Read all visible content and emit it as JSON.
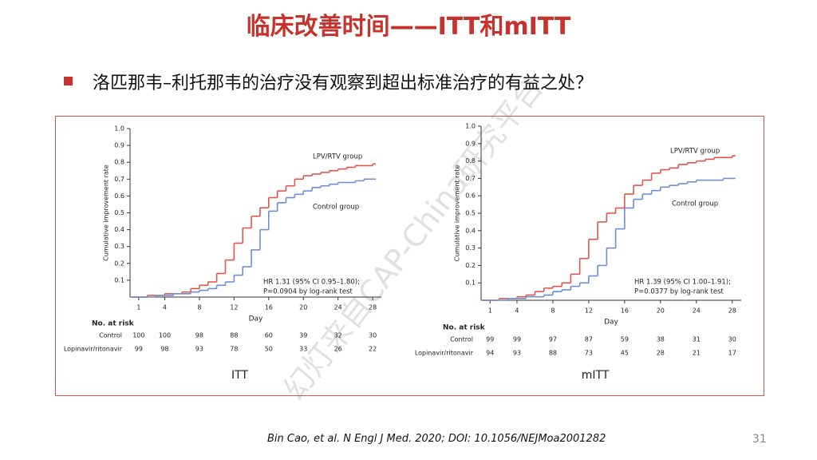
{
  "title": "临床改善时间——ITT和mITT",
  "bullet": "洛匹那韦–利托那韦的治疗没有观察到超出标准治疗的有益之处？",
  "citation": "Bin Cao, et al. N Engl J Med. 2020; DOI: 10.1056/NEJMoa2001282",
  "page_number": "31",
  "watermark": "幻灯来自CAP-China研究平台",
  "chart_data": [
    {
      "type": "step",
      "title": "ITT",
      "x_label": "Day",
      "y_label": "Cumulative improvement rate",
      "xlim": [
        0,
        29
      ],
      "xticks": [
        1,
        4,
        8,
        12,
        16,
        20,
        24,
        28
      ],
      "ylim": [
        0,
        1
      ],
      "yticks": [
        0.1,
        0.2,
        0.3,
        0.4,
        0.5,
        0.6,
        0.7,
        0.8,
        0.9,
        {
          "value": 1,
          "label": "1.0"
        }
      ],
      "x": [
        0,
        1,
        2,
        3,
        4,
        5,
        6,
        7,
        8,
        9,
        10,
        11,
        12,
        13,
        14,
        15,
        16,
        17,
        18,
        19,
        20,
        21,
        22,
        23,
        24,
        25,
        26,
        27,
        28
      ],
      "series": [
        {
          "name": "LPV/RTV group",
          "color": "#e2554a",
          "values": [
            0,
            0,
            0.01,
            0.01,
            0.02,
            0.02,
            0.03,
            0.05,
            0.07,
            0.09,
            0.14,
            0.22,
            0.32,
            0.41,
            0.48,
            0.53,
            0.59,
            0.63,
            0.66,
            0.7,
            0.72,
            0.73,
            0.74,
            0.75,
            0.76,
            0.77,
            0.78,
            0.78,
            0.79
          ]
        },
        {
          "name": "Control group",
          "color": "#6b8fd6",
          "values": [
            0,
            0,
            0,
            0.01,
            0.01,
            0.02,
            0.02,
            0.03,
            0.04,
            0.05,
            0.07,
            0.09,
            0.13,
            0.18,
            0.28,
            0.4,
            0.51,
            0.56,
            0.59,
            0.61,
            0.63,
            0.65,
            0.66,
            0.67,
            0.68,
            0.68,
            0.69,
            0.7,
            0.7
          ]
        }
      ],
      "annotations": [
        "HR 1.31 (95% CI 0.95–1.80);",
        "P=0.0904 by log-rank test"
      ],
      "risk_table": {
        "title": "No. at risk",
        "rows": [
          {
            "name": "Control",
            "values": [
              100,
              100,
              98,
              88,
              60,
              39,
              32,
              30
            ]
          },
          {
            "name": "Lopinavir/ritonavir",
            "values": [
              99,
              98,
              93,
              78,
              50,
              33,
              26,
              22
            ]
          }
        ]
      }
    },
    {
      "type": "step",
      "title": "mITT",
      "x_label": "Day",
      "y_label": "Cumulative improvement rate",
      "xlim": [
        0,
        29
      ],
      "xticks": [
        1,
        4,
        8,
        12,
        16,
        20,
        24,
        28
      ],
      "ylim": [
        0,
        1
      ],
      "yticks": [
        0.1,
        0.2,
        0.3,
        0.4,
        0.5,
        0.6,
        0.7,
        0.8,
        0.9,
        {
          "value": 1,
          "label": "1.0"
        }
      ],
      "x": [
        0,
        1,
        2,
        3,
        4,
        5,
        6,
        7,
        8,
        9,
        10,
        11,
        12,
        13,
        14,
        15,
        16,
        17,
        18,
        19,
        20,
        21,
        22,
        23,
        24,
        25,
        26,
        27,
        28
      ],
      "series": [
        {
          "name": "LPV/RTV group",
          "color": "#e2554a",
          "values": [
            0,
            0,
            0.01,
            0.01,
            0.02,
            0.03,
            0.05,
            0.07,
            0.08,
            0.1,
            0.15,
            0.24,
            0.35,
            0.45,
            0.5,
            0.53,
            0.61,
            0.66,
            0.69,
            0.73,
            0.75,
            0.76,
            0.78,
            0.79,
            0.8,
            0.81,
            0.82,
            0.82,
            0.83
          ]
        },
        {
          "name": "Control group",
          "color": "#6b8fd6",
          "values": [
            0,
            0,
            0,
            0.01,
            0.01,
            0.02,
            0.02,
            0.03,
            0.05,
            0.06,
            0.08,
            0.1,
            0.14,
            0.2,
            0.3,
            0.41,
            0.53,
            0.58,
            0.61,
            0.63,
            0.65,
            0.66,
            0.67,
            0.68,
            0.69,
            0.69,
            0.69,
            0.7,
            0.7
          ]
        }
      ],
      "annotations": [
        "HR 1.39 (95% CI 1.00–1.91);",
        "P=0.0377 by log-rank test"
      ],
      "risk_table": {
        "title": "No. at risk",
        "rows": [
          {
            "name": "Control",
            "values": [
              99,
              99,
              97,
              87,
              59,
              38,
              31,
              30
            ]
          },
          {
            "name": "Lopinavir/ritonavir",
            "values": [
              94,
              93,
              88,
              73,
              45,
              28,
              21,
              17
            ]
          }
        ]
      }
    }
  ]
}
